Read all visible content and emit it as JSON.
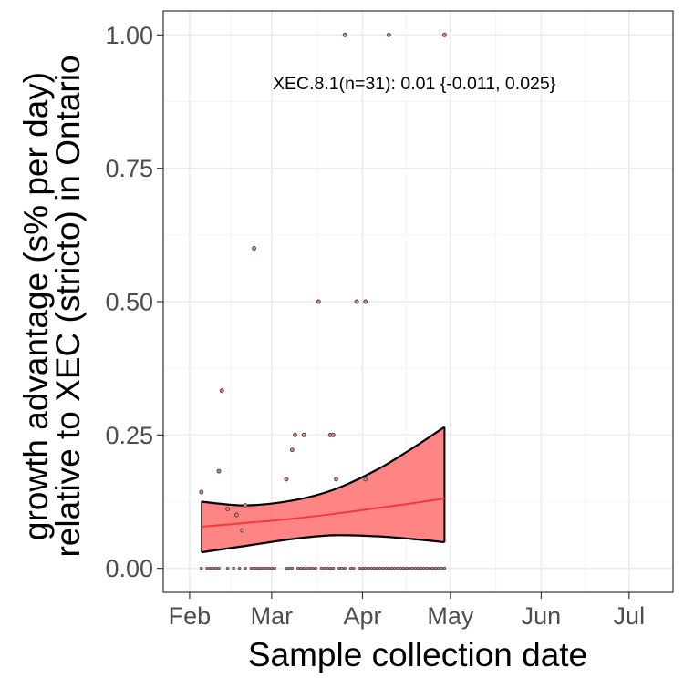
{
  "chart_data": {
    "type": "scatter",
    "xlabel": "Sample collection date",
    "ylabel_line1": "growth advantage (s% per day)",
    "ylabel_line2": "relative to XEC (stricto) in Ontario",
    "annotation": "XEC.8.1(n=31): 0.01 {-0.011, 0.025}",
    "xlim": [
      "2025-01-23",
      "2025-07-16"
    ],
    "ylim": [
      -0.045,
      1.045
    ],
    "x_ticks": [
      {
        "date": "2025-02-01",
        "label": "Feb"
      },
      {
        "date": "2025-03-01",
        "label": "Mar"
      },
      {
        "date": "2025-04-01",
        "label": "Apr"
      },
      {
        "date": "2025-05-01",
        "label": "May"
      },
      {
        "date": "2025-06-01",
        "label": "Jun"
      },
      {
        "date": "2025-07-01",
        "label": "Jul"
      }
    ],
    "y_ticks": [
      {
        "value": 0,
        "label": "0.00"
      },
      {
        "value": 0.25,
        "label": "0.25"
      },
      {
        "value": 0.5,
        "label": "0.50"
      },
      {
        "value": 0.75,
        "label": "0.75"
      },
      {
        "value": 1,
        "label": "1.00"
      }
    ],
    "grid": true,
    "points": [
      {
        "x": "2025-02-05",
        "y": 0.143
      },
      {
        "x": "2025-02-11",
        "y": 0.182
      },
      {
        "x": "2025-02-12",
        "y": 0.333
      },
      {
        "x": "2025-02-14",
        "y": 0.111
      },
      {
        "x": "2025-02-17",
        "y": 0.1
      },
      {
        "x": "2025-02-19",
        "y": 0.071
      },
      {
        "x": "2025-02-20",
        "y": 0.118
      },
      {
        "x": "2025-02-23",
        "y": 0.6
      },
      {
        "x": "2025-03-06",
        "y": 0.167
      },
      {
        "x": "2025-03-08",
        "y": 0.222
      },
      {
        "x": "2025-03-09",
        "y": 0.25
      },
      {
        "x": "2025-03-12",
        "y": 0.25
      },
      {
        "x": "2025-03-17",
        "y": 0.5
      },
      {
        "x": "2025-03-21",
        "y": 0.25
      },
      {
        "x": "2025-03-22",
        "y": 0.25
      },
      {
        "x": "2025-03-23",
        "y": 0.167
      },
      {
        "x": "2025-03-26",
        "y": 1.0
      },
      {
        "x": "2025-03-30",
        "y": 0.5
      },
      {
        "x": "2025-04-02",
        "y": 0.5
      },
      {
        "x": "2025-04-02",
        "y": 0.167
      },
      {
        "x": "2025-04-10",
        "y": 1.0
      },
      {
        "x": "2025-04-29",
        "y": 1.0
      }
    ],
    "zero_points": [
      "2025-02-05",
      "2025-02-07",
      "2025-02-08",
      "2025-02-09",
      "2025-02-10",
      "2025-02-11",
      "2025-02-14",
      "2025-02-16",
      "2025-02-18",
      "2025-02-20",
      "2025-02-22",
      "2025-02-23",
      "2025-02-24",
      "2025-02-25",
      "2025-02-26",
      "2025-02-27",
      "2025-02-28",
      "2025-03-01",
      "2025-03-02",
      "2025-03-06",
      "2025-03-07",
      "2025-03-08",
      "2025-03-10",
      "2025-03-11",
      "2025-03-12",
      "2025-03-13",
      "2025-03-14",
      "2025-03-15",
      "2025-03-16",
      "2025-03-18",
      "2025-03-19",
      "2025-03-20",
      "2025-03-21",
      "2025-03-22",
      "2025-03-24",
      "2025-03-25",
      "2025-03-26",
      "2025-03-28",
      "2025-03-29",
      "2025-03-31",
      "2025-04-01",
      "2025-04-02",
      "2025-04-03",
      "2025-04-04",
      "2025-04-05",
      "2025-04-06",
      "2025-04-07",
      "2025-04-08",
      "2025-04-09",
      "2025-04-10",
      "2025-04-11",
      "2025-04-12",
      "2025-04-13",
      "2025-04-14",
      "2025-04-15",
      "2025-04-16",
      "2025-04-17",
      "2025-04-18",
      "2025-04-19",
      "2025-04-20",
      "2025-04-21",
      "2025-04-22",
      "2025-04-23",
      "2025-04-24",
      "2025-04-25",
      "2025-04-26",
      "2025-04-27",
      "2025-04-28",
      "2025-04-29"
    ],
    "fit": {
      "x": [
        "2025-02-05",
        "2025-02-20",
        "2025-03-08",
        "2025-03-22",
        "2025-04-06",
        "2025-04-18",
        "2025-04-29"
      ],
      "y": [
        0.078,
        0.085,
        0.093,
        0.102,
        0.113,
        0.122,
        0.131
      ],
      "lower": [
        0.03,
        0.042,
        0.055,
        0.062,
        0.06,
        0.055,
        0.049
      ],
      "upper": [
        0.125,
        0.118,
        0.127,
        0.147,
        0.185,
        0.225,
        0.265
      ]
    },
    "colors": {
      "ribbon": "#ff6e6e",
      "fit_line": "#ee3b3b",
      "bound_line": "#000000",
      "point_fill": "#e08080",
      "point_stroke": "#444444",
      "grid_major": "#ebebeb",
      "grid_minor": "#f5f5f5",
      "panel_border": "#333333"
    }
  }
}
